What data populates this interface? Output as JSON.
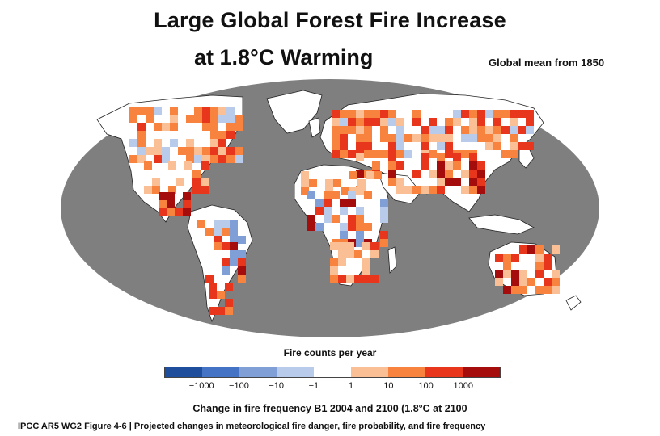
{
  "title": {
    "line1": "Large Global Forest Fire Increase",
    "line2": "at 1.8°C Warming",
    "subtitle": "Global mean from 1850"
  },
  "legend": {
    "title": "Fire counts per year",
    "ticks": [
      "−1000",
      "−100",
      "−10",
      "−1",
      "1",
      "10",
      "100",
      "1000"
    ],
    "colors": [
      "#1f4e9c",
      "#4472c4",
      "#7f9fd6",
      "#b9cbea",
      "#ffffff",
      "#fbbf96",
      "#f7833f",
      "#e8361c",
      "#a50d0d"
    ]
  },
  "caption": "Change in fire frequency  B1 2004 and 2100 (1.8°C at 2100",
  "source": "IPCC AR5 WG2 Figure 4-6 | Projected changes in meteorological fire danger, fire probability, and fire frequency",
  "map_colors": {
    "ocean": "#7f7f7f",
    "land_base": "#ffffff",
    "coast": "#222222"
  }
}
